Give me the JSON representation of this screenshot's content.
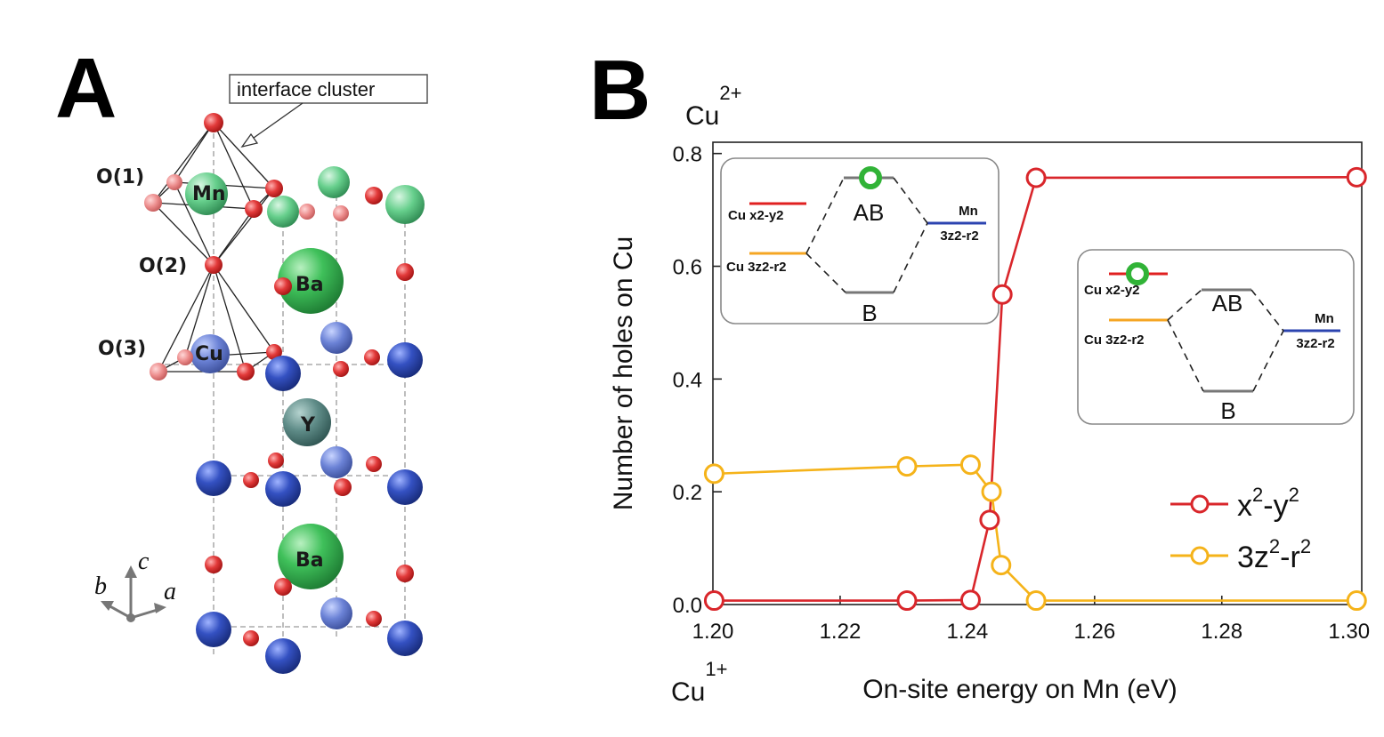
{
  "panel_a": {
    "letter": "A",
    "callout": "interface cluster",
    "atom_labels": {
      "o1": "O(1)",
      "o2": "O(2)",
      "o3": "O(3)",
      "mn": "Mn",
      "cu": "Cu",
      "y": "Y",
      "ba_upper": "Ba",
      "ba_lower": "Ba"
    },
    "axes": {
      "c": "c",
      "b": "b",
      "a": "a"
    },
    "colors": {
      "oxygen": "#e23a3a",
      "manganese": "#3cb06a",
      "barium": "#2fa84a",
      "copper": "#2a45b0",
      "yttrium": "#4d7a78"
    }
  },
  "panel_b": {
    "letter": "B",
    "top_label_base": "Cu",
    "top_label_sup": "2+",
    "bottom_label_base": "Cu",
    "bottom_label_sup": "1+",
    "inset1": {
      "cu_upper": "Cu x2-y2",
      "cu_lower": "Cu 3z2-r2",
      "ab": "AB",
      "b": "B",
      "mn": "Mn",
      "mn_orb": "3z2-r2"
    },
    "inset2": {
      "cu_upper": "Cu  x2-y2",
      "cu_lower": "Cu 3z2-r2",
      "ab": "AB",
      "b": "B",
      "mn": "Mn",
      "mn_orb": "3z2-r2"
    },
    "legend": [
      {
        "label": "x",
        "sup1": "2",
        "mid": "-y",
        "sup2": "2"
      },
      {
        "label": "3z",
        "sup1": "2",
        "mid": "-r",
        "sup2": "2"
      }
    ]
  },
  "chart_data": {
    "type": "line",
    "title": "",
    "xlabel": "On-site energy on Mn (eV)",
    "ylabel": "Number of holes on Cu",
    "xlim": [
      1.2,
      1.302
    ],
    "ylim": [
      0.0,
      0.82
    ],
    "xticks": [
      1.2,
      1.22,
      1.24,
      1.26,
      1.28,
      1.3
    ],
    "xtick_labels": [
      "1.20",
      "1.22",
      "1.24",
      "1.26",
      "1.28",
      "1.30"
    ],
    "yticks": [
      0.0,
      0.2,
      0.4,
      0.6,
      0.8
    ],
    "ytick_labels": [
      "0.0",
      "0.2",
      "0.4",
      "0.6",
      "0.8"
    ],
    "series": [
      {
        "name": "x2-y2",
        "color": "#d9262b",
        "x": [
          1.2002,
          1.2305,
          1.2405,
          1.2435,
          1.2455,
          1.2508,
          1.3012
        ],
        "y": [
          0.007,
          0.007,
          0.008,
          0.15,
          0.55,
          0.757,
          0.758
        ]
      },
      {
        "name": "3z2-r2",
        "color": "#f5b31a",
        "x": [
          1.2002,
          1.2305,
          1.2405,
          1.2438,
          1.2453,
          1.2508,
          1.3012
        ],
        "y": [
          0.232,
          0.245,
          0.248,
          0.2,
          0.07,
          0.007,
          0.007
        ]
      }
    ]
  }
}
